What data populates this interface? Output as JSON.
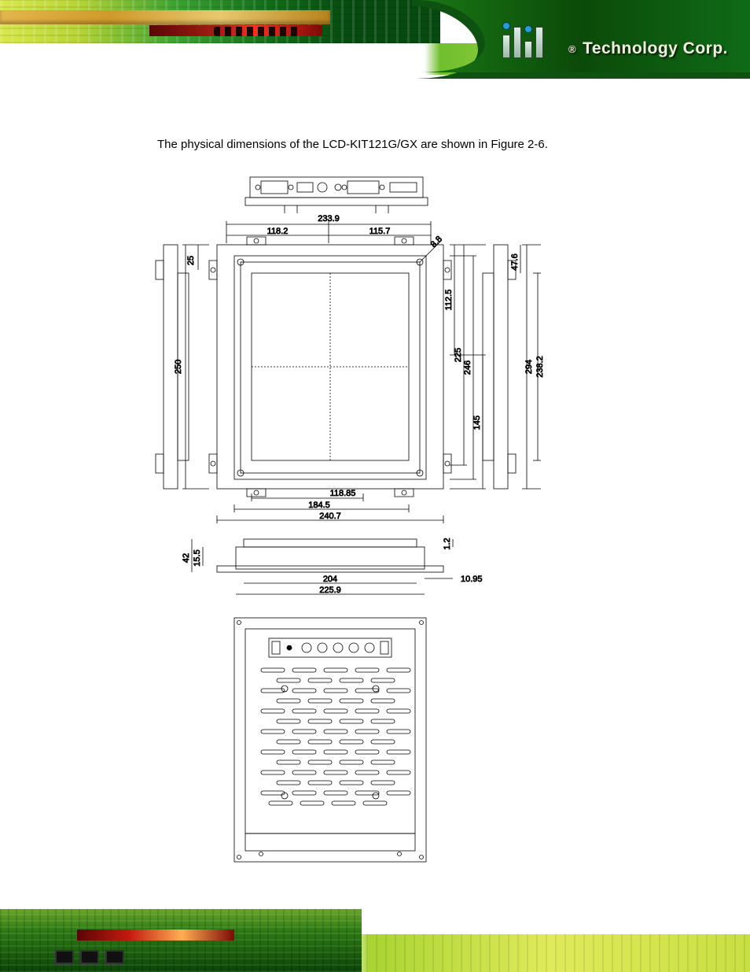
{
  "brand": {
    "reg": "®",
    "name": "Technology Corp."
  },
  "intro": "The physical dimensions of the LCD-KIT121G/GX are shown in Figure 2-6.",
  "dims": {
    "top_total": "233.9",
    "top_left": "118.2",
    "top_right": "115.7",
    "diag": "8.8",
    "left_h": "250",
    "left_top": "25",
    "r_a": "112.5",
    "r_b": "225",
    "r_c": "246",
    "r_d": "145",
    "r_top": "47.6",
    "side_h": "294",
    "side_ih": "238.2",
    "bot_a": "118.85",
    "bot_b": "184.5",
    "bot_c": "240.7",
    "mid_h1": "42",
    "mid_h2": "15.5",
    "mid_top": "1.2",
    "mid_w1": "204",
    "mid_w2": "225.9",
    "mid_r": "10.95"
  },
  "colors": {
    "line": "#000000",
    "thin": "#000000",
    "bg": "#ffffff"
  }
}
